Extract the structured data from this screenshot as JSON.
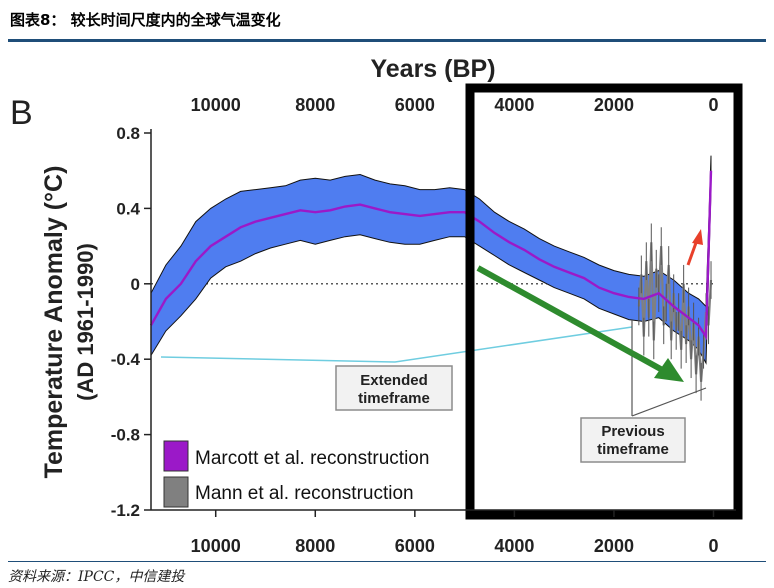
{
  "header": {
    "title": "图表8： 较长时间尺度内的全球气温变化"
  },
  "footer": {
    "source": "资料来源：IPCC，中信建投"
  },
  "chart_data": {
    "type": "area",
    "panel_letter": "B",
    "top_axis_title": "Years (BP)",
    "ylabel_line1": "Temperature Anomaly (°C)",
    "ylabel_line2": "(AD 1961-1990)",
    "x_ticks": [
      10000,
      8000,
      6000,
      4000,
      2000,
      0
    ],
    "x_tick_labels": [
      "10000",
      "8000",
      "6000",
      "4000",
      "2000",
      "0"
    ],
    "xlim": [
      11300,
      -50
    ],
    "y_ticks": [
      0.8,
      0.4,
      0,
      -0.4,
      -0.8,
      -1.2
    ],
    "y_tick_labels": [
      "0.8",
      "0.4",
      "0",
      "-0.4",
      "-0.8",
      "-1.2"
    ],
    "ylim": [
      -1.2,
      0.8
    ],
    "zero_line": "dotted",
    "colors": {
      "marcott_band": "#4f7df0",
      "marcott_line": "#9b19c8",
      "mann": "#808080",
      "cyan": "#6fcde0",
      "green_arrow": "#2e8b2e",
      "red_arrow": "#e8402a",
      "box": "#000000"
    },
    "series": [
      {
        "name": "Marcott et al. reconstruction",
        "x": [
          11300,
          11000,
          10700,
          10400,
          10100,
          9800,
          9500,
          9200,
          8900,
          8600,
          8300,
          8000,
          7700,
          7400,
          7100,
          6800,
          6500,
          6200,
          5900,
          5600,
          5300,
          5000,
          4700,
          4400,
          4100,
          3800,
          3500,
          3200,
          2900,
          2600,
          2300,
          2000,
          1700,
          1400,
          1100,
          800,
          500,
          300,
          150,
          50
        ],
        "values": [
          -0.22,
          -0.08,
          0.0,
          0.12,
          0.2,
          0.25,
          0.3,
          0.33,
          0.35,
          0.37,
          0.39,
          0.38,
          0.39,
          0.41,
          0.42,
          0.4,
          0.38,
          0.37,
          0.36,
          0.37,
          0.38,
          0.38,
          0.33,
          0.27,
          0.22,
          0.18,
          0.13,
          0.09,
          0.06,
          0.03,
          -0.02,
          -0.05,
          -0.07,
          -0.08,
          -0.05,
          -0.12,
          -0.18,
          -0.22,
          -0.28,
          0.6
        ],
        "upper": [
          -0.05,
          0.1,
          0.2,
          0.33,
          0.4,
          0.45,
          0.49,
          0.5,
          0.51,
          0.52,
          0.55,
          0.56,
          0.55,
          0.57,
          0.58,
          0.55,
          0.53,
          0.52,
          0.5,
          0.5,
          0.51,
          0.5,
          0.45,
          0.38,
          0.33,
          0.29,
          0.24,
          0.2,
          0.17,
          0.14,
          0.1,
          0.07,
          0.05,
          0.04,
          0.07,
          0.02,
          -0.05,
          -0.08,
          -0.12,
          0.68
        ],
        "lower": [
          -0.38,
          -0.25,
          -0.17,
          -0.08,
          0.03,
          0.09,
          0.12,
          0.16,
          0.19,
          0.21,
          0.23,
          0.21,
          0.23,
          0.25,
          0.26,
          0.24,
          0.22,
          0.21,
          0.21,
          0.23,
          0.25,
          0.25,
          0.2,
          0.15,
          0.1,
          0.06,
          0.02,
          -0.02,
          -0.05,
          -0.08,
          -0.13,
          -0.16,
          -0.19,
          -0.2,
          -0.18,
          -0.25,
          -0.3,
          -0.35,
          -0.42,
          0.5
        ]
      },
      {
        "name": "Mann et al. reconstruction",
        "x": [
          1500,
          1450,
          1400,
          1350,
          1300,
          1250,
          1200,
          1150,
          1100,
          1050,
          1000,
          950,
          900,
          850,
          800,
          750,
          700,
          650,
          600,
          550,
          500,
          450,
          400,
          350,
          300,
          250,
          200,
          150,
          100,
          50
        ],
        "values": [
          -0.12,
          0.05,
          -0.28,
          0.12,
          -0.18,
          0.22,
          -0.3,
          0.08,
          -0.05,
          0.2,
          -0.22,
          -0.1,
          0.1,
          -0.3,
          -0.05,
          -0.25,
          -0.15,
          -0.35,
          0.0,
          -0.32,
          -0.12,
          -0.4,
          -0.2,
          -0.48,
          -0.28,
          -0.52,
          -0.35,
          -0.15,
          -0.22,
          0.02
        ]
      }
    ],
    "legend": {
      "placement": "bottom-left",
      "items": [
        "Marcott et al. reconstruction",
        "Mann et al. reconstruction"
      ]
    },
    "annotations": [
      {
        "text_line1": "Extended",
        "text_line2": "timeframe"
      },
      {
        "text_line1": "Previous",
        "text_line2": "timeframe"
      }
    ]
  }
}
